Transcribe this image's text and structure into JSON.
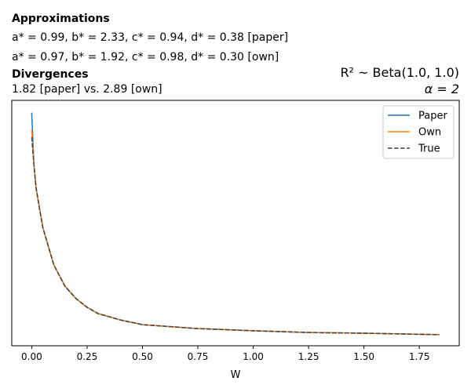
{
  "header": {
    "approx_title": "Approximations",
    "approx_paper": "a* = 0.99, b* = 2.33, c* = 0.94, d* = 0.38 [paper]",
    "approx_own": "a* = 0.97, b* = 1.92, c* = 0.98, d* = 0.30 [own]",
    "div_title": "Divergences",
    "div_values": "1.82 [paper] vs. 2.89 [own]",
    "prior": "R² ~  Beta(1.0, 1.0)",
    "alpha": "α = 2"
  },
  "chart_data": {
    "type": "line",
    "title": "",
    "xlabel": "W",
    "ylabel": "",
    "xlim": [
      -0.09,
      1.93
    ],
    "ylim": [
      0,
      10
    ],
    "y_ticks_shown": false,
    "grid": false,
    "legend": "top-right",
    "xticks": [
      0.0,
      0.25,
      0.5,
      0.75,
      1.0,
      1.25,
      1.5,
      1.75
    ],
    "xtick_labels": [
      "0.00",
      "0.25",
      "0.50",
      "0.75",
      "1.00",
      "1.25",
      "1.50",
      "1.75"
    ],
    "x": [
      0,
      0.01,
      0.02,
      0.05,
      0.1,
      0.15,
      0.2,
      0.25,
      0.3,
      0.4,
      0.5,
      0.75,
      1.0,
      1.25,
      1.5,
      1.84
    ],
    "series": [
      {
        "name": "Paper",
        "color": "#1f77b4",
        "dash": false,
        "values": [
          9.5,
          7.38,
          6.42,
          4.82,
          3.29,
          2.43,
          1.92,
          1.57,
          1.31,
          1.05,
          0.86,
          0.7,
          0.61,
          0.54,
          0.51,
          0.45
        ]
      },
      {
        "name": "Own",
        "color": "#ff7f0e",
        "dash": false,
        "values": [
          8.8,
          7.38,
          6.42,
          4.82,
          3.29,
          2.43,
          1.92,
          1.57,
          1.31,
          1.05,
          0.86,
          0.7,
          0.61,
          0.54,
          0.51,
          0.45
        ]
      },
      {
        "name": "True",
        "color": "#404040",
        "dash": true,
        "values": [
          8.5,
          7.38,
          6.42,
          4.82,
          3.29,
          2.43,
          1.92,
          1.57,
          1.31,
          1.05,
          0.86,
          0.7,
          0.61,
          0.54,
          0.51,
          0.45
        ]
      }
    ]
  }
}
